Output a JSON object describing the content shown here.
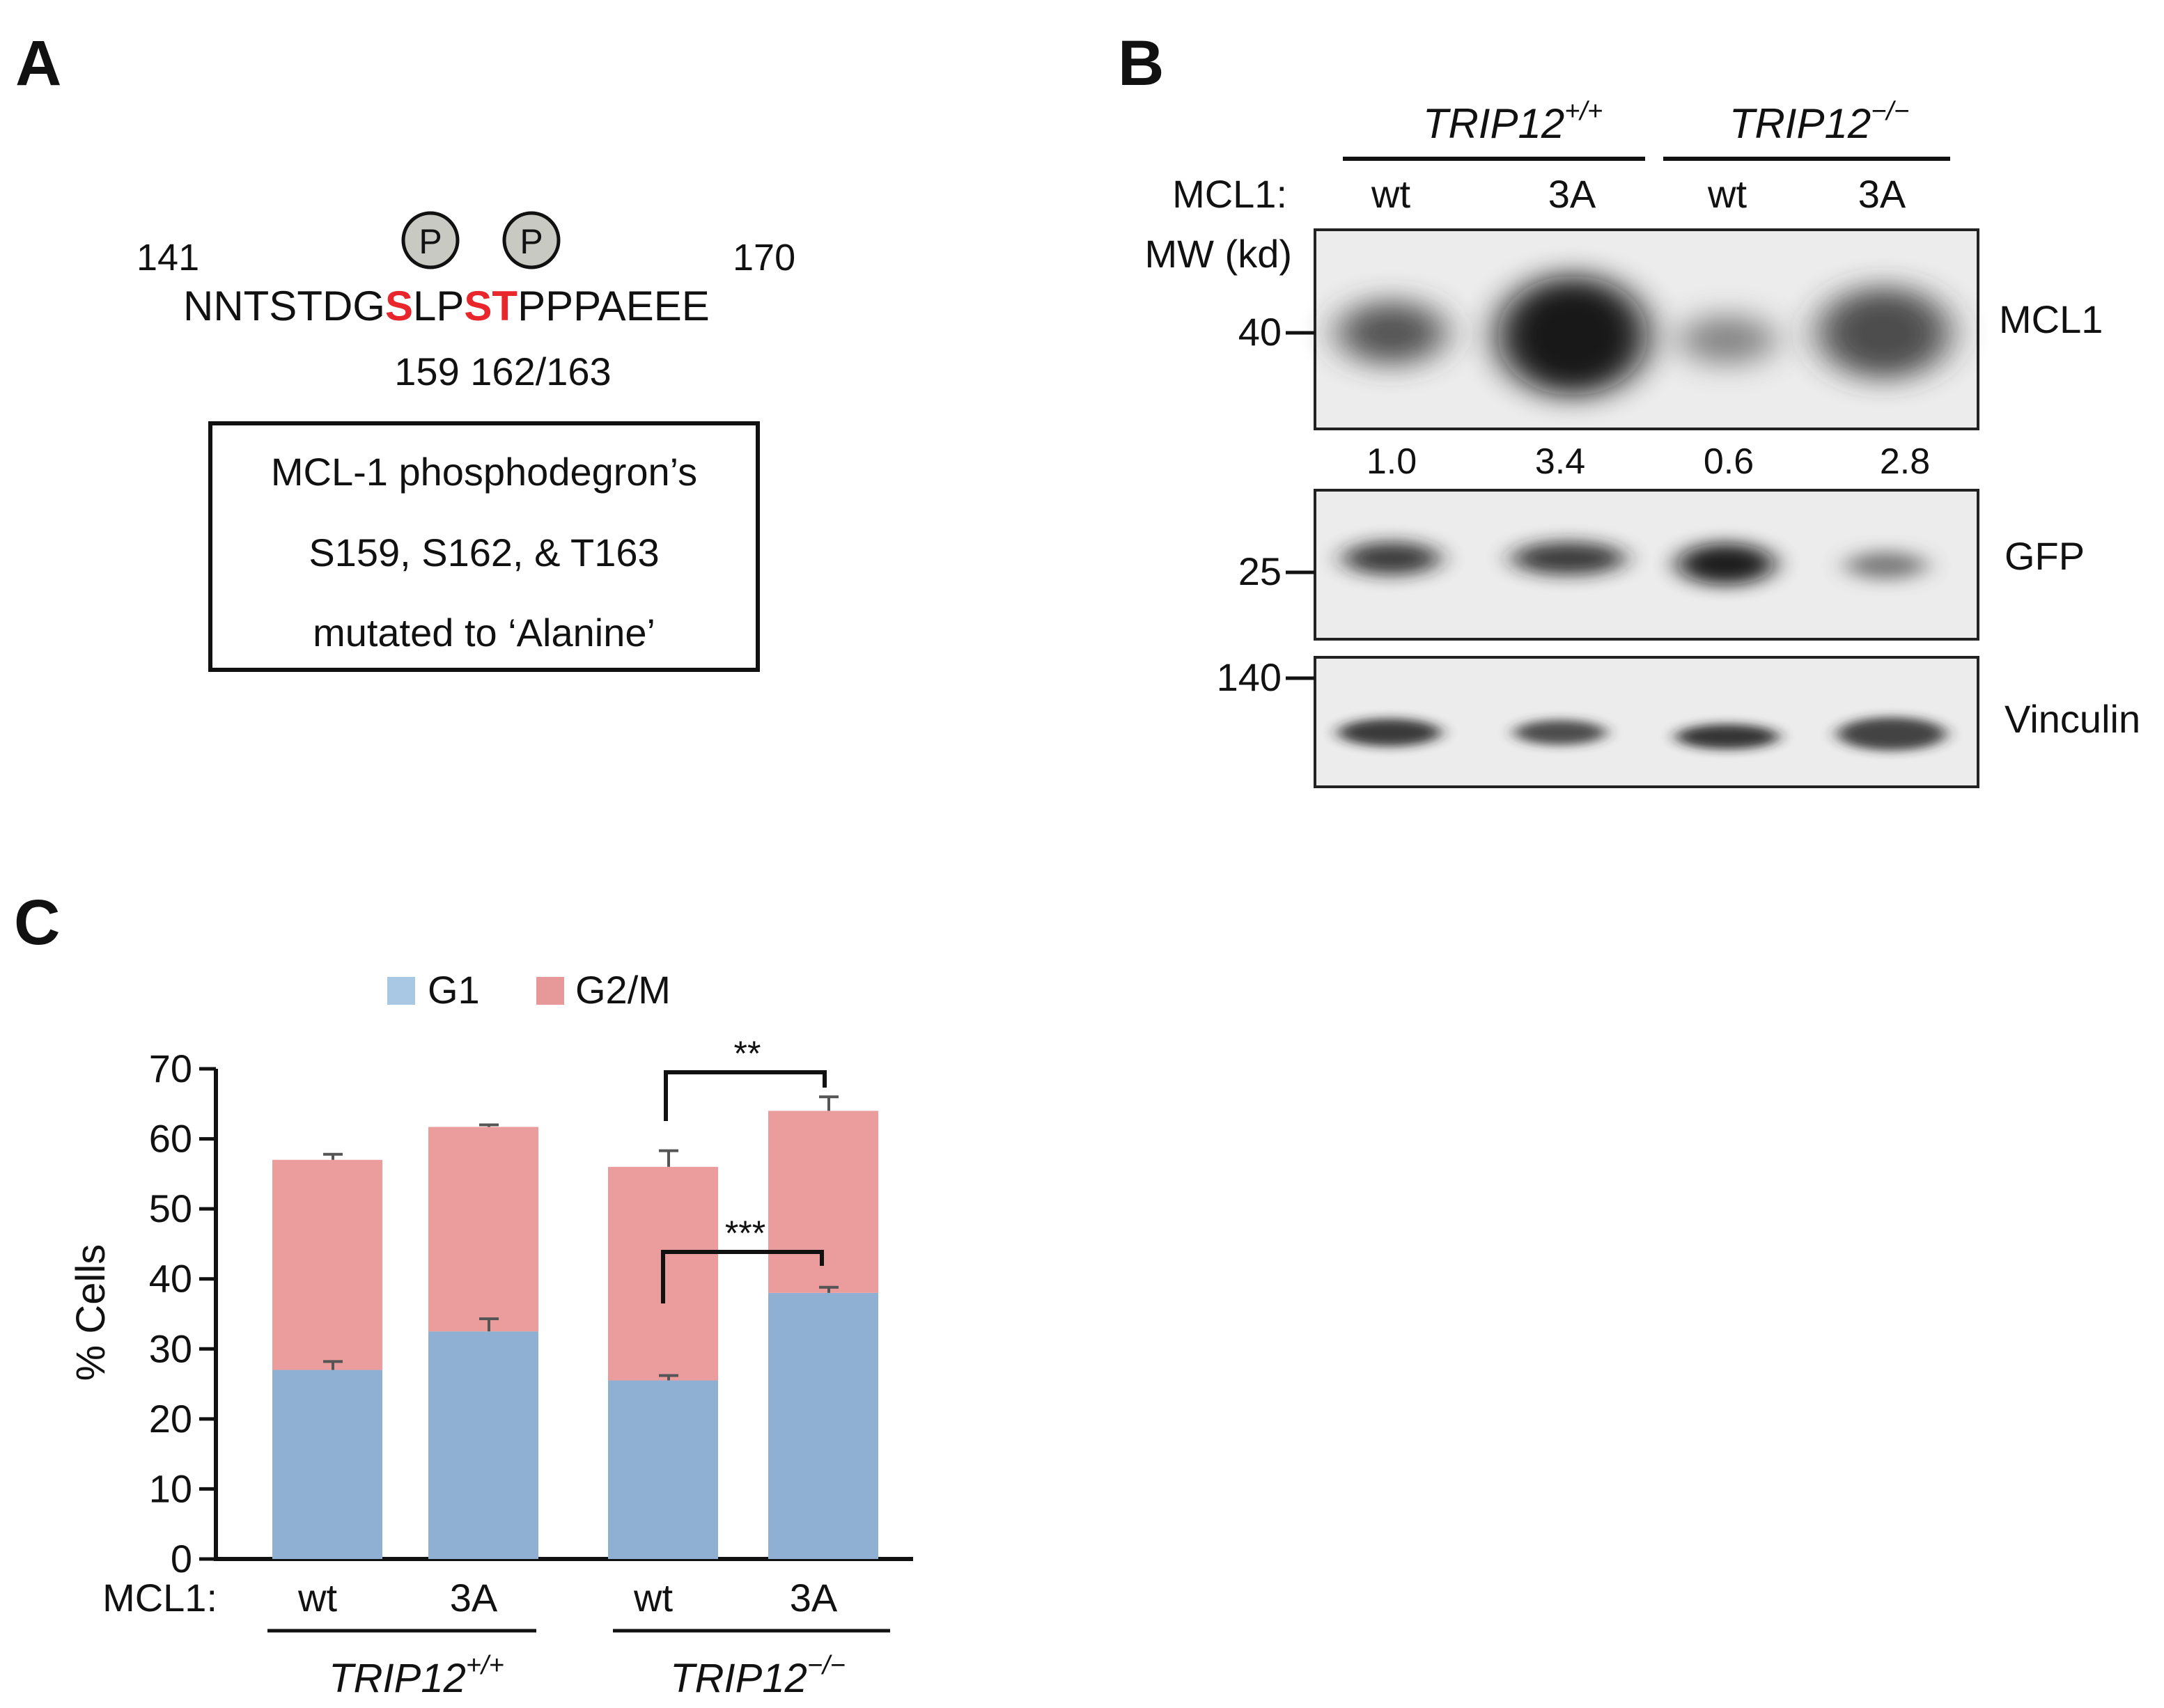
{
  "panel_a": {
    "label": "A",
    "seq_start": "141",
    "seq_end": "170",
    "phospho_symbol": "P",
    "sequence_parts": [
      "NNTSTDG",
      "S",
      "LP",
      "ST",
      "PPPAEEE"
    ],
    "positions": "159 162/163",
    "box_lines": [
      "MCL-1 phosphodegron’s",
      "S159, S162, & T163",
      "mutated to ‘Alanine’"
    ],
    "highlight_color": "#e8262b"
  },
  "panel_b": {
    "label": "B",
    "genotypes": [
      {
        "base": "TRIP12",
        "sup": "+/+"
      },
      {
        "base": "TRIP12",
        "sup": "−/−"
      }
    ],
    "row_label": "MCL1:",
    "lanes": [
      "wt",
      "3A",
      "wt",
      "3A"
    ],
    "mw_label": "MW (kd)",
    "markers": [
      "40",
      "25",
      "140"
    ],
    "blots": [
      "MCL1",
      "GFP",
      "Vinculin"
    ],
    "quant": [
      "1.0",
      "3.4",
      "0.6",
      "2.8"
    ]
  },
  "panel_c": {
    "label": "C",
    "row_label": "MCL1:",
    "genotypes": [
      {
        "base": "TRIP12",
        "sup": "+/+"
      },
      {
        "base": "TRIP12",
        "sup": "−/−"
      }
    ],
    "significance": [
      "**",
      "***"
    ]
  },
  "chart_data": {
    "type": "bar",
    "stacked": true,
    "categories": [
      "wt",
      "3A",
      "wt",
      "3A"
    ],
    "series": [
      {
        "name": "G1",
        "color": "#8fb0d3",
        "values": [
          27,
          32.5,
          25.5,
          38
        ],
        "errors": [
          1.2,
          1.8,
          0.7,
          0.8
        ]
      },
      {
        "name": "G2/M",
        "color": "#eb9c9d",
        "values": [
          30,
          29.2,
          30.5,
          26
        ],
        "errors": [
          0.8,
          0.3,
          2.3,
          2.0
        ]
      }
    ],
    "ylabel": "% Cells",
    "xlabel": "",
    "ylim": [
      0,
      70
    ],
    "yticks": [
      0,
      10,
      20,
      30,
      40,
      50,
      60,
      70
    ],
    "legend_items": [
      "G1",
      "G2/M"
    ],
    "legend_position": "top"
  }
}
